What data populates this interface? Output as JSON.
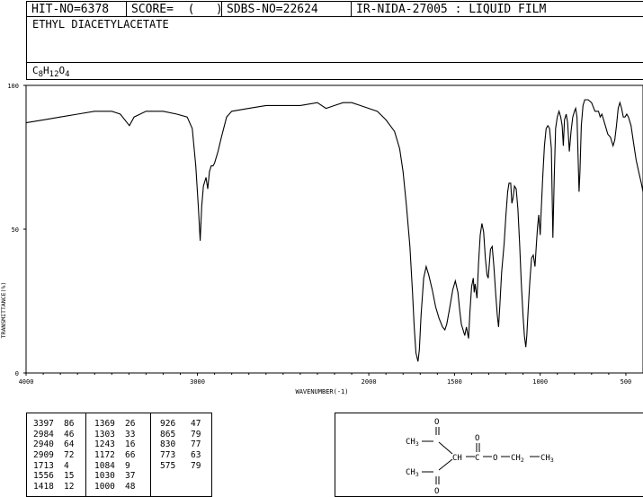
{
  "header": {
    "hit_no": "HIT-NO=6378",
    "score": "SCORE=  (   )",
    "sdbs_no": "SDBS-NO=22624",
    "ir_info": "IR-NIDA-27005 : LIQUID FILM"
  },
  "compound": {
    "name": "ETHYL DIACETYLACETATE",
    "formula_parts": [
      "C",
      "8",
      "H",
      "12",
      "O",
      "4"
    ]
  },
  "chart_data": {
    "type": "line",
    "xlabel": "WAVENUMBER(-1)",
    "ylabel": "TRANSMITTANCE(%)",
    "xlim": [
      4000,
      400
    ],
    "ylim": [
      0,
      100
    ],
    "x_ticks": [
      4000,
      3000,
      2000,
      1500,
      1000,
      500
    ],
    "y_ticks": [
      0,
      50,
      100
    ],
    "grid": false,
    "series": [
      {
        "points": [
          [
            4000,
            87
          ],
          [
            3900,
            88
          ],
          [
            3800,
            89
          ],
          [
            3700,
            90
          ],
          [
            3600,
            91
          ],
          [
            3500,
            91
          ],
          [
            3450,
            90
          ],
          [
            3397,
            86
          ],
          [
            3370,
            89
          ],
          [
            3300,
            91
          ],
          [
            3200,
            91
          ],
          [
            3120,
            90
          ],
          [
            3060,
            89
          ],
          [
            3030,
            85
          ],
          [
            3010,
            72
          ],
          [
            2995,
            58
          ],
          [
            2984,
            46
          ],
          [
            2975,
            58
          ],
          [
            2965,
            65
          ],
          [
            2950,
            68
          ],
          [
            2940,
            64
          ],
          [
            2930,
            70
          ],
          [
            2920,
            72
          ],
          [
            2909,
            72
          ],
          [
            2900,
            73
          ],
          [
            2880,
            77
          ],
          [
            2860,
            82
          ],
          [
            2830,
            89
          ],
          [
            2800,
            91
          ],
          [
            2700,
            92
          ],
          [
            2600,
            93
          ],
          [
            2500,
            93
          ],
          [
            2400,
            93
          ],
          [
            2300,
            94
          ],
          [
            2250,
            92
          ],
          [
            2200,
            93
          ],
          [
            2150,
            94
          ],
          [
            2100,
            94
          ],
          [
            2050,
            93
          ],
          [
            2000,
            92
          ],
          [
            1950,
            91
          ],
          [
            1900,
            88
          ],
          [
            1850,
            84
          ],
          [
            1820,
            78
          ],
          [
            1800,
            70
          ],
          [
            1780,
            58
          ],
          [
            1760,
            44
          ],
          [
            1745,
            28
          ],
          [
            1735,
            16
          ],
          [
            1725,
            7
          ],
          [
            1713,
            4
          ],
          [
            1705,
            8
          ],
          [
            1695,
            20
          ],
          [
            1680,
            33
          ],
          [
            1665,
            37
          ],
          [
            1650,
            34
          ],
          [
            1630,
            29
          ],
          [
            1610,
            23
          ],
          [
            1590,
            19
          ],
          [
            1570,
            16
          ],
          [
            1556,
            15
          ],
          [
            1545,
            17
          ],
          [
            1530,
            22
          ],
          [
            1510,
            29
          ],
          [
            1495,
            32
          ],
          [
            1480,
            28
          ],
          [
            1470,
            22
          ],
          [
            1460,
            17
          ],
          [
            1450,
            15
          ],
          [
            1440,
            13
          ],
          [
            1430,
            16
          ],
          [
            1418,
            12
          ],
          [
            1410,
            21
          ],
          [
            1400,
            30
          ],
          [
            1390,
            33
          ],
          [
            1385,
            28
          ],
          [
            1380,
            31
          ],
          [
            1369,
            26
          ],
          [
            1360,
            38
          ],
          [
            1350,
            48
          ],
          [
            1340,
            52
          ],
          [
            1330,
            49
          ],
          [
            1320,
            40
          ],
          [
            1310,
            34
          ],
          [
            1303,
            33
          ],
          [
            1290,
            43
          ],
          [
            1280,
            44
          ],
          [
            1270,
            37
          ],
          [
            1260,
            28
          ],
          [
            1250,
            20
          ],
          [
            1243,
            16
          ],
          [
            1235,
            24
          ],
          [
            1225,
            35
          ],
          [
            1210,
            45
          ],
          [
            1200,
            55
          ],
          [
            1190,
            63
          ],
          [
            1182,
            66
          ],
          [
            1172,
            66
          ],
          [
            1165,
            59
          ],
          [
            1158,
            61
          ],
          [
            1150,
            65
          ],
          [
            1140,
            64
          ],
          [
            1130,
            57
          ],
          [
            1120,
            45
          ],
          [
            1110,
            31
          ],
          [
            1100,
            20
          ],
          [
            1092,
            13
          ],
          [
            1084,
            9
          ],
          [
            1078,
            13
          ],
          [
            1070,
            22
          ],
          [
            1060,
            32
          ],
          [
            1050,
            40
          ],
          [
            1040,
            41
          ],
          [
            1030,
            37
          ],
          [
            1022,
            45
          ],
          [
            1015,
            51
          ],
          [
            1008,
            55
          ],
          [
            1000,
            48
          ],
          [
            995,
            55
          ],
          [
            985,
            68
          ],
          [
            975,
            79
          ],
          [
            965,
            85
          ],
          [
            955,
            86
          ],
          [
            945,
            85
          ],
          [
            935,
            78
          ],
          [
            926,
            47
          ],
          [
            918,
            68
          ],
          [
            910,
            85
          ],
          [
            900,
            89
          ],
          [
            890,
            91
          ],
          [
            880,
            89
          ],
          [
            872,
            86
          ],
          [
            865,
            79
          ],
          [
            858,
            88
          ],
          [
            848,
            90
          ],
          [
            840,
            87
          ],
          [
            830,
            77
          ],
          [
            820,
            84
          ],
          [
            810,
            89
          ],
          [
            800,
            91
          ],
          [
            793,
            92
          ],
          [
            785,
            89
          ],
          [
            773,
            63
          ],
          [
            768,
            70
          ],
          [
            760,
            86
          ],
          [
            750,
            93
          ],
          [
            740,
            95
          ],
          [
            720,
            95
          ],
          [
            700,
            94
          ],
          [
            680,
            91
          ],
          [
            660,
            91
          ],
          [
            650,
            89
          ],
          [
            640,
            90
          ],
          [
            620,
            86
          ],
          [
            605,
            83
          ],
          [
            590,
            82
          ],
          [
            575,
            79
          ],
          [
            565,
            81
          ],
          [
            555,
            86
          ],
          [
            545,
            92
          ],
          [
            535,
            94
          ],
          [
            525,
            92
          ],
          [
            515,
            89
          ],
          [
            505,
            89
          ],
          [
            495,
            90
          ],
          [
            485,
            89
          ],
          [
            470,
            86
          ],
          [
            455,
            80
          ],
          [
            440,
            74
          ],
          [
            425,
            70
          ],
          [
            410,
            66
          ],
          [
            400,
            63
          ]
        ]
      }
    ]
  },
  "peaks": [
    [
      [
        "3397",
        "86"
      ],
      [
        "2984",
        "46"
      ],
      [
        "2940",
        "64"
      ],
      [
        "2909",
        "72"
      ],
      [
        "1713",
        "4"
      ],
      [
        "1556",
        "15"
      ],
      [
        "1418",
        "12"
      ]
    ],
    [
      [
        "1369",
        "26"
      ],
      [
        "1303",
        "33"
      ],
      [
        "1243",
        "16"
      ],
      [
        "1172",
        "66"
      ],
      [
        "1084",
        "9"
      ],
      [
        "1030",
        "37"
      ],
      [
        "1000",
        "48"
      ]
    ],
    [
      [
        "926",
        "47"
      ],
      [
        "865",
        "79"
      ],
      [
        "830",
        "77"
      ],
      [
        "773",
        "63"
      ],
      [
        "575",
        "79"
      ]
    ]
  ],
  "structure": {
    "o_top": "O",
    "o_ester": "O",
    "o_bottom": "O",
    "ch3_top": "CH",
    "ch3_bottom": "CH",
    "ch": "CH",
    "c_ester": "C",
    "o_bridge": "O",
    "ch2": "CH",
    "ch3_end": "CH",
    "sub3": "3",
    "sub2": "2"
  }
}
